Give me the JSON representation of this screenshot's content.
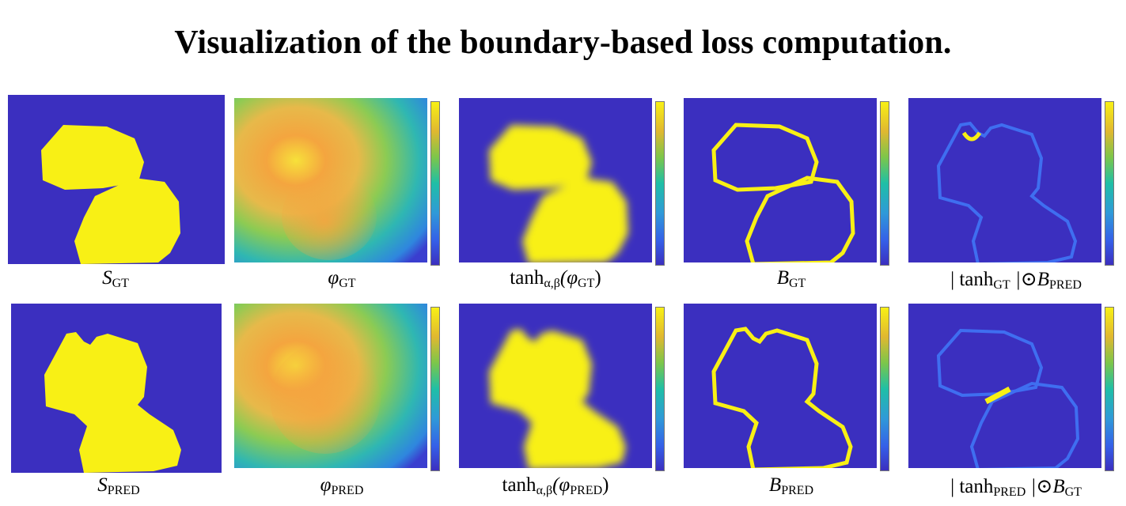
{
  "title": "Visualization of the boundary-based loss computation.",
  "colors": {
    "background": "#3b2fbf",
    "foreground": "#f8f015"
  },
  "rows": [
    {
      "captions": [
        {
          "main": "S",
          "sub": "GT"
        },
        {
          "main": "φ",
          "sub": "GT"
        },
        {
          "pre": "tanh",
          "presub": "α,β",
          "main": "(φ",
          "sub": "GT",
          "post": ")"
        },
        {
          "main": "B",
          "sub": "GT"
        },
        {
          "pre": "| tanh",
          "presub": "GT",
          "main": " |⊙B",
          "sub": "PRED"
        }
      ]
    },
    {
      "captions": [
        {
          "main": "S",
          "sub": "PRED"
        },
        {
          "main": "φ",
          "sub": "PRED"
        },
        {
          "pre": "tanh",
          "presub": "α,β",
          "main": "(φ",
          "sub": "PRED",
          "post": ")"
        },
        {
          "main": "B",
          "sub": "PRED"
        },
        {
          "pre": "| tanh",
          "presub": "PRED",
          "main": " |⊙B",
          "sub": "GT"
        }
      ]
    }
  ]
}
